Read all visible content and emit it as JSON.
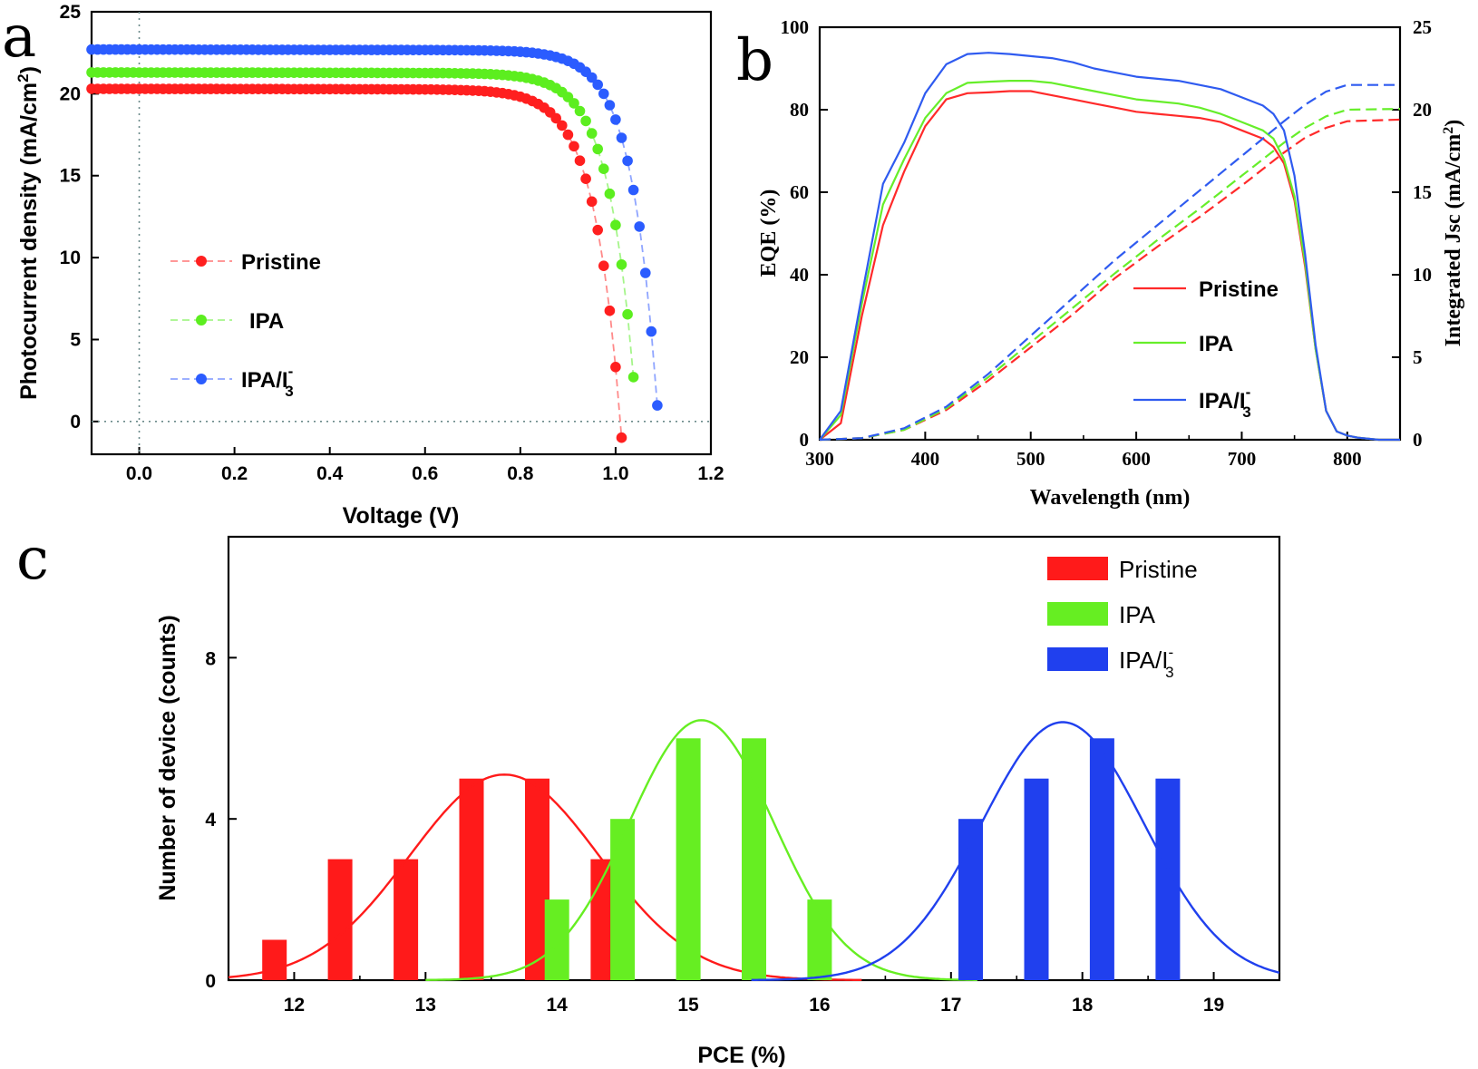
{
  "panels": {
    "a": "a",
    "b": "b",
    "c": "c"
  },
  "chart_data": [
    {
      "panel": "a",
      "type": "line",
      "xlabel": "Voltage (V)",
      "ylabel": "Photocurrent density (mA/cm2)",
      "ylabel_parts": {
        "main": "Photocurrent density (mA/cm",
        "sup": "2",
        "tail": ")"
      },
      "xlim": [
        -0.1,
        1.2
      ],
      "ylim": [
        -2,
        25
      ],
      "xticks": [
        0.0,
        0.2,
        0.4,
        0.6,
        0.8,
        1.0,
        1.2
      ],
      "xtick_labels": [
        "0.0",
        "0.2",
        "0.4",
        "0.6",
        "0.8",
        "1.0",
        "1.2"
      ],
      "yticks": [
        0,
        5,
        10,
        15,
        20,
        25
      ],
      "ytick_labels": [
        "0",
        "5",
        "10",
        "15",
        "20",
        "25"
      ],
      "reference_lines": {
        "x": 0,
        "y": 0
      },
      "legend_position": "center-left",
      "series": [
        {
          "name": "Pristine",
          "color": "#ff1f1f",
          "line_color": "#ff8a8a",
          "Jsc": 20.3,
          "Voc": 1.01,
          "FF": 0.72
        },
        {
          "name": "IPA",
          "color": "#5cee1f",
          "line_color": "#a5f58a",
          "Jsc": 21.3,
          "Voc": 1.045,
          "FF": 0.73
        },
        {
          "name": "IPA/I3-",
          "color": "#2b5cff",
          "line_color": "#8fa5ff",
          "Jsc": 22.7,
          "Voc": 1.09,
          "FF": 0.735
        }
      ],
      "legend_labels": [
        {
          "main": "Pristine",
          "sup": "",
          "sub": ""
        },
        {
          "main": "IPA",
          "sup": "",
          "sub": ""
        },
        {
          "main": "IPA/I",
          "sup": "-",
          "sub": "3"
        }
      ]
    },
    {
      "panel": "b",
      "type": "line",
      "xlabel": "Wavelength (nm)",
      "ylabel": "EQE (%)",
      "ylabel_right": "Integrated Jsc (mA/cm2)",
      "ylabel_right_parts": {
        "main": "Integrated Jsc (mA/cm",
        "sup": "2",
        "tail": ")"
      },
      "xlim": [
        300,
        850
      ],
      "ylim": [
        0,
        100
      ],
      "ylim_right": [
        0,
        25
      ],
      "xticks": [
        300,
        400,
        500,
        600,
        700,
        800
      ],
      "xtick_labels": [
        "300",
        "400",
        "500",
        "600",
        "700",
        "800"
      ],
      "yticks": [
        0,
        20,
        40,
        60,
        80,
        100
      ],
      "ytick_labels": [
        "0",
        "20",
        "40",
        "60",
        "80",
        "100"
      ],
      "yticks_right": [
        0,
        5,
        10,
        15,
        20,
        25
      ],
      "ytick_right_labels": [
        "0",
        "5",
        "10",
        "15",
        "20",
        "25"
      ],
      "legend_position": "center-right",
      "eqe_x": [
        300,
        320,
        340,
        360,
        380,
        400,
        420,
        440,
        460,
        480,
        500,
        520,
        540,
        560,
        580,
        600,
        620,
        640,
        660,
        680,
        700,
        720,
        730,
        740,
        750,
        760,
        770,
        780,
        790,
        800,
        810,
        830,
        850
      ],
      "series": [
        {
          "name": "Pristine",
          "color": "#ff2a2a",
          "eqe": [
            0,
            4,
            30,
            52,
            65,
            76,
            82.5,
            84,
            84.2,
            84.5,
            84.5,
            83.5,
            82.5,
            81.5,
            80.5,
            79.5,
            79,
            78.5,
            78,
            77,
            75,
            73,
            71,
            67,
            58,
            42,
            22,
            7,
            2,
            1,
            0.5,
            0,
            0
          ],
          "jsc_x": [
            300,
            340,
            380,
            420,
            460,
            500,
            540,
            580,
            620,
            660,
            700,
            740,
            760,
            780,
            800,
            850
          ],
          "jsc": [
            0,
            0.1,
            0.6,
            1.8,
            3.6,
            5.6,
            7.6,
            9.8,
            11.7,
            13.5,
            15.4,
            17.4,
            18.3,
            18.9,
            19.3,
            19.4
          ]
        },
        {
          "name": "IPA",
          "color": "#66ee2a",
          "eqe": [
            0,
            6,
            33,
            57,
            68,
            78,
            84,
            86.5,
            86.8,
            87,
            87,
            86.5,
            85.5,
            84.5,
            83.5,
            82.5,
            82,
            81.5,
            80.5,
            79,
            77,
            75,
            73,
            68,
            59,
            43,
            22,
            7,
            2,
            1,
            0.5,
            0,
            0
          ],
          "jsc_x": [
            300,
            340,
            380,
            420,
            460,
            500,
            540,
            580,
            620,
            660,
            700,
            740,
            760,
            780,
            800,
            850
          ],
          "jsc": [
            0,
            0.1,
            0.6,
            1.9,
            3.8,
            5.9,
            8.0,
            10.1,
            12.1,
            14.0,
            16.0,
            18.0,
            18.9,
            19.6,
            20.0,
            20.05
          ]
        },
        {
          "name": "IPA/I3-",
          "color": "#2f5bf0",
          "eqe": [
            0,
            7,
            35,
            62,
            72,
            84,
            91,
            93.5,
            93.8,
            93.5,
            93,
            92.5,
            91.5,
            90,
            89,
            88,
            87.5,
            87,
            86,
            85,
            83,
            81,
            79,
            75,
            64,
            45,
            23,
            7,
            2,
            1,
            0.5,
            0,
            0
          ],
          "jsc_x": [
            300,
            340,
            380,
            420,
            460,
            500,
            540,
            580,
            620,
            660,
            700,
            740,
            760,
            780,
            800,
            850
          ],
          "jsc": [
            0,
            0.1,
            0.7,
            2.0,
            4.0,
            6.3,
            8.6,
            10.9,
            13.0,
            15.1,
            17.2,
            19.3,
            20.3,
            21.1,
            21.5,
            21.5
          ]
        }
      ],
      "legend_labels": [
        {
          "main": "Pristine",
          "sup": "",
          "sub": ""
        },
        {
          "main": "IPA",
          "sup": "",
          "sub": ""
        },
        {
          "main": "IPA/I",
          "sup": "-",
          "sub": "3"
        }
      ]
    },
    {
      "panel": "c",
      "type": "bar",
      "xlabel": "PCE (%)",
      "ylabel": "Number of device (counts)",
      "xlim": [
        11.5,
        19.5
      ],
      "ylim": [
        0,
        11
      ],
      "xticks": [
        12,
        13,
        14,
        15,
        16,
        17,
        18,
        19
      ],
      "xtick_labels": [
        "12",
        "13",
        "14",
        "15",
        "16",
        "17",
        "18",
        "19"
      ],
      "yticks": [
        0,
        4,
        8
      ],
      "ytick_labels": [
        "0",
        "4",
        "8"
      ],
      "legend_position": "top-right",
      "series": [
        {
          "name": "Pristine",
          "color": "#ff1a1a",
          "x": [
            11.85,
            12.35,
            12.85,
            13.35,
            13.85,
            14.35
          ],
          "counts": [
            1,
            3,
            3,
            5,
            5,
            3
          ],
          "fit": {
            "mean": 13.6,
            "sigma": 0.72,
            "peak": 5.1
          }
        },
        {
          "name": "IPA",
          "color": "#66ee22",
          "x": [
            14.0,
            14.5,
            15.0,
            15.5,
            16.0
          ],
          "counts": [
            2,
            4,
            6,
            6,
            2
          ],
          "fit": {
            "mean": 15.1,
            "sigma": 0.55,
            "peak": 6.45
          }
        },
        {
          "name": "IPA/I3-",
          "color": "#2040ee",
          "x": [
            17.15,
            17.65,
            18.15,
            18.65
          ],
          "counts": [
            4,
            5,
            6,
            5
          ],
          "fit": {
            "mean": 17.85,
            "sigma": 0.62,
            "peak": 6.4
          }
        }
      ],
      "legend_labels": [
        {
          "main": "Pristine",
          "sup": "",
          "sub": ""
        },
        {
          "main": "IPA",
          "sup": "",
          "sub": ""
        },
        {
          "main": "IPA/I",
          "sup": "-",
          "sub": "3"
        }
      ]
    }
  ]
}
